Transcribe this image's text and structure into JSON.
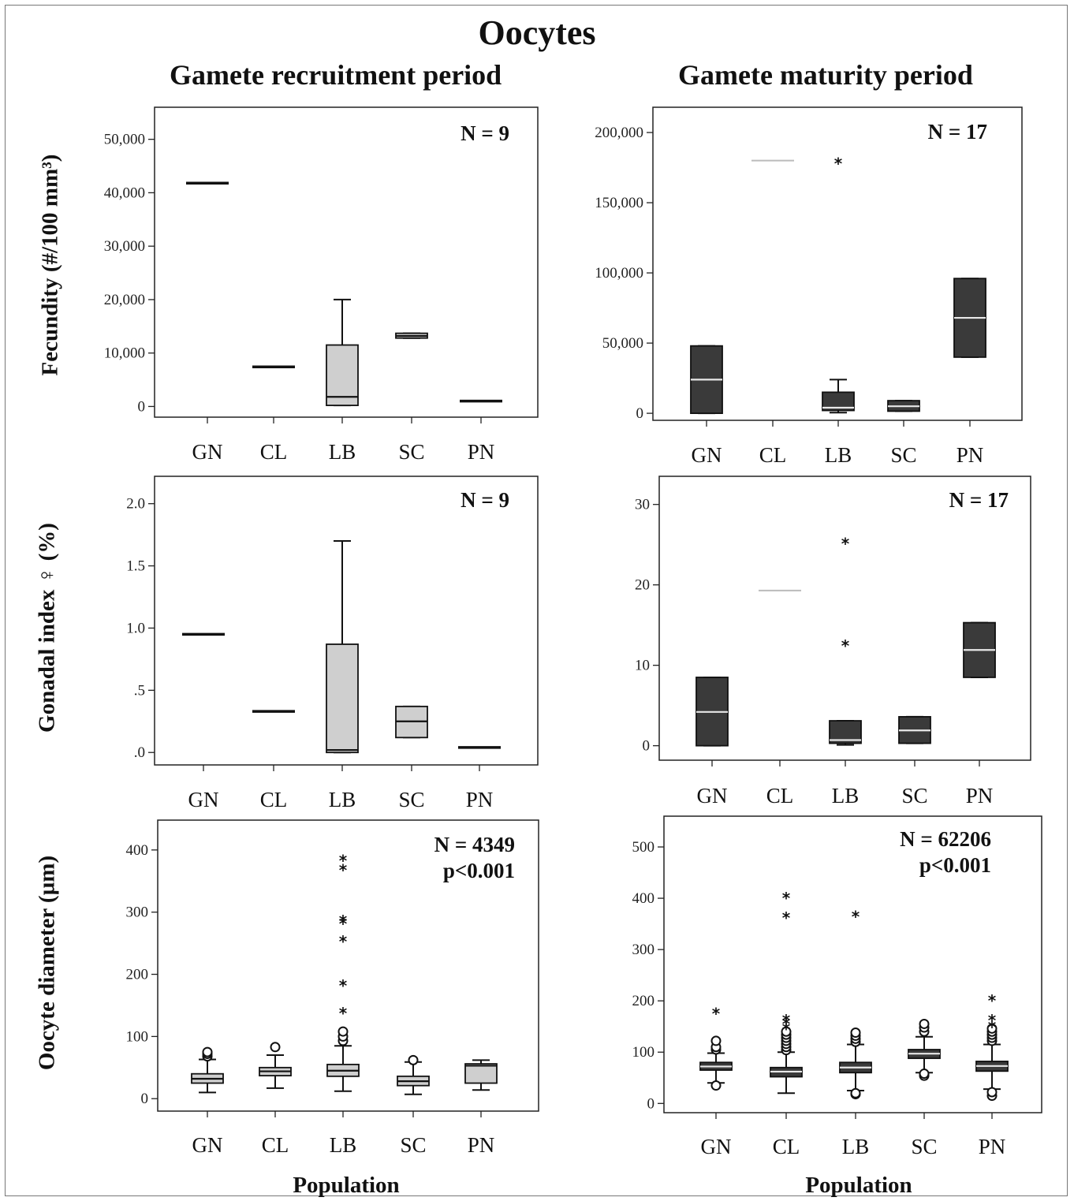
{
  "title": "Oocytes",
  "columns": {
    "left": "Gamete recruitment period",
    "right": "Gamete maturity period"
  },
  "y_labels": {
    "fecundity": "Fecundity (#/100 mm³)",
    "gonadal": "Gonadal index ♀ (%)",
    "oocyte": "Oocyte diameter (µm)"
  },
  "x_title": "Population",
  "colors": {
    "box_light": "#cfcfcf",
    "box_dark": "#3a3a3a",
    "median_on_dark": "#e8e8e8",
    "median_light_only": "#bbbbbb"
  },
  "chart_data": [
    {
      "type": "box",
      "title": "",
      "ylabel": "Fecundity (#/100 mm³)",
      "xlabel": "",
      "categories": [
        "GN",
        "CL",
        "LB",
        "SC",
        "PN"
      ],
      "ylim": [
        -2000,
        56000
      ],
      "yticks": [
        0,
        10000,
        20000,
        30000,
        40000,
        50000
      ],
      "ytick_labels": [
        "0",
        "10,000",
        "20,000",
        "30,000",
        "40,000",
        "50,000"
      ],
      "annotation": [
        "N = 9"
      ],
      "style": "light",
      "boxes": [
        {
          "median": 41800,
          "q1": 41800,
          "q3": 41800,
          "whisker_low": 41800,
          "whisker_high": 41800,
          "outliers": [],
          "extremes": []
        },
        {
          "median": 7400,
          "q1": 7400,
          "q3": 7400,
          "whisker_low": 7400,
          "whisker_high": 7400,
          "outliers": [],
          "extremes": []
        },
        {
          "median": 1800,
          "q1": 200,
          "q3": 11500,
          "whisker_low": 200,
          "whisker_high": 20000,
          "outliers": [],
          "extremes": []
        },
        {
          "median": 13200,
          "q1": 12800,
          "q3": 13700,
          "whisker_low": 12800,
          "whisker_high": 13700,
          "outliers": [],
          "extremes": []
        },
        {
          "median": 1000,
          "q1": 1000,
          "q3": 1000,
          "whisker_low": 1000,
          "whisker_high": 1000,
          "outliers": [],
          "extremes": []
        }
      ]
    },
    {
      "type": "box",
      "title": "",
      "ylabel": "",
      "xlabel": "",
      "categories": [
        "GN",
        "CL",
        "LB",
        "SC",
        "PN"
      ],
      "ylim": [
        -5000,
        218000
      ],
      "yticks": [
        0,
        50000,
        100000,
        150000,
        200000
      ],
      "ytick_labels": [
        "0",
        "50,000",
        "100,000",
        "150,000",
        "200,000"
      ],
      "annotation": [
        "N = 17"
      ],
      "style": "dark",
      "boxes": [
        {
          "median": 24000,
          "q1": 0,
          "q3": 48000,
          "whisker_low": 0,
          "whisker_high": 48000,
          "outliers": [],
          "extremes": []
        },
        {
          "median": 180000,
          "q1": 180000,
          "q3": 180000,
          "whisker_low": 180000,
          "whisker_high": 180000,
          "outliers": [],
          "extremes": [],
          "light_median": true
        },
        {
          "median": 4000,
          "q1": 2000,
          "q3": 15000,
          "whisker_low": 500,
          "whisker_high": 24000,
          "outliers": [],
          "extremes": [
            179000
          ]
        },
        {
          "median": 5000,
          "q1": 1500,
          "q3": 9000,
          "whisker_low": 1500,
          "whisker_high": 9000,
          "outliers": [],
          "extremes": []
        },
        {
          "median": 68000,
          "q1": 40000,
          "q3": 96000,
          "whisker_low": 40000,
          "whisker_high": 96000,
          "outliers": [],
          "extremes": []
        }
      ]
    },
    {
      "type": "box",
      "title": "",
      "ylabel": "Gonadal index ♀ (%)",
      "xlabel": "",
      "categories": [
        "GN",
        "CL",
        "LB",
        "SC",
        "PN"
      ],
      "ylim": [
        -0.1,
        2.22
      ],
      "yticks": [
        0,
        0.5,
        1.0,
        1.5,
        2.0
      ],
      "ytick_labels": [
        ".0",
        ".5",
        "1.0",
        "1.5",
        "2.0"
      ],
      "annotation": [
        "N = 9"
      ],
      "style": "light",
      "boxes": [
        {
          "median": 0.95,
          "q1": 0.95,
          "q3": 0.95,
          "whisker_low": 0.95,
          "whisker_high": 0.95,
          "outliers": [],
          "extremes": []
        },
        {
          "median": 0.33,
          "q1": 0.33,
          "q3": 0.33,
          "whisker_low": 0.33,
          "whisker_high": 0.33,
          "outliers": [],
          "extremes": []
        },
        {
          "median": 0.02,
          "q1": 0.0,
          "q3": 0.87,
          "whisker_low": 0.0,
          "whisker_high": 1.7,
          "outliers": [],
          "extremes": []
        },
        {
          "median": 0.25,
          "q1": 0.12,
          "q3": 0.37,
          "whisker_low": 0.12,
          "whisker_high": 0.37,
          "outliers": [],
          "extremes": []
        },
        {
          "median": 0.04,
          "q1": 0.04,
          "q3": 0.04,
          "whisker_low": 0.04,
          "whisker_high": 0.04,
          "outliers": [],
          "extremes": []
        }
      ]
    },
    {
      "type": "box",
      "title": "",
      "ylabel": "",
      "xlabel": "",
      "categories": [
        "GN",
        "CL",
        "LB",
        "SC",
        "PN"
      ],
      "ylim": [
        -1.8,
        33.5
      ],
      "yticks": [
        0,
        10,
        20,
        30
      ],
      "ytick_labels": [
        "0",
        "10",
        "20",
        "30"
      ],
      "annotation": [
        "N = 17"
      ],
      "style": "dark",
      "boxes": [
        {
          "median": 4.2,
          "q1": 0,
          "q3": 8.5,
          "whisker_low": 0,
          "whisker_high": 8.5,
          "outliers": [],
          "extremes": []
        },
        {
          "median": 19.3,
          "q1": 19.3,
          "q3": 19.3,
          "whisker_low": 19.3,
          "whisker_high": 19.3,
          "outliers": [],
          "extremes": [],
          "light_median": true
        },
        {
          "median": 0.7,
          "q1": 0.3,
          "q3": 3.1,
          "whisker_low": 0.1,
          "whisker_high": 3.1,
          "outliers": [],
          "extremes": [
            12.6,
            25.3
          ]
        },
        {
          "median": 1.9,
          "q1": 0.3,
          "q3": 3.6,
          "whisker_low": 0.3,
          "whisker_high": 3.6,
          "outliers": [],
          "extremes": []
        },
        {
          "median": 11.9,
          "q1": 8.5,
          "q3": 15.3,
          "whisker_low": 8.5,
          "whisker_high": 15.3,
          "outliers": [],
          "extremes": []
        }
      ]
    },
    {
      "type": "box",
      "title": "",
      "ylabel": "Oocyte diameter (µm)",
      "xlabel": "Population",
      "categories": [
        "GN",
        "CL",
        "LB",
        "SC",
        "PN"
      ],
      "ylim": [
        -20,
        448
      ],
      "yticks": [
        0,
        100,
        200,
        300,
        400
      ],
      "ytick_labels": [
        "0",
        "100",
        "200",
        "300",
        "400"
      ],
      "annotation": [
        "N = 4349",
        "p<0.001"
      ],
      "style": "light",
      "boxes": [
        {
          "median": 32,
          "q1": 25,
          "q3": 40,
          "whisker_low": 10,
          "whisker_high": 63,
          "outliers": [
            68,
            72,
            75
          ],
          "extremes": []
        },
        {
          "median": 44,
          "q1": 37,
          "q3": 50,
          "whisker_low": 17,
          "whisker_high": 70,
          "outliers": [
            83
          ],
          "extremes": []
        },
        {
          "median": 45,
          "q1": 36,
          "q3": 55,
          "whisker_low": 12,
          "whisker_high": 85,
          "outliers": [
            93,
            100,
            108
          ],
          "extremes": [
            140,
            184,
            255,
            284,
            288,
            370,
            385
          ]
        },
        {
          "median": 28,
          "q1": 21,
          "q3": 36,
          "whisker_low": 7,
          "whisker_high": 59,
          "outliers": [
            62
          ],
          "extremes": []
        },
        {
          "median": 53,
          "q1": 25,
          "q3": 56,
          "whisker_low": 14,
          "whisker_high": 62,
          "outliers": [],
          "extremes": []
        }
      ]
    },
    {
      "type": "box",
      "title": "",
      "ylabel": "",
      "xlabel": "Population",
      "categories": [
        "GN",
        "CL",
        "LB",
        "SC",
        "PN"
      ],
      "ylim": [
        -18,
        560
      ],
      "yticks": [
        0,
        100,
        200,
        300,
        400,
        500
      ],
      "ytick_labels": [
        "0",
        "100",
        "200",
        "300",
        "400",
        "500"
      ],
      "annotation": [
        "N = 62206",
        "p<0.001"
      ],
      "style": "dark",
      "boxes": [
        {
          "median": 72,
          "q1": 65,
          "q3": 80,
          "whisker_low": 40,
          "whisker_high": 98,
          "outliers": [
            35,
            105,
            110,
            122
          ],
          "extremes": [
            178
          ]
        },
        {
          "median": 62,
          "q1": 52,
          "q3": 70,
          "whisker_low": 20,
          "whisker_high": 100,
          "outliers": [
            104,
            110,
            116,
            122,
            128,
            134,
            140
          ],
          "extremes": [
            148,
            158,
            165,
            365,
            403
          ]
        },
        {
          "median": 70,
          "q1": 60,
          "q3": 80,
          "whisker_low": 25,
          "whisker_high": 115,
          "outliers": [
            18,
            20,
            120,
            126,
            132,
            138
          ],
          "extremes": [
            367
          ]
        },
        {
          "median": 97,
          "q1": 88,
          "q3": 105,
          "whisker_low": 60,
          "whisker_high": 130,
          "outliers": [
            54,
            58,
            140,
            148,
            155
          ],
          "extremes": []
        },
        {
          "median": 73,
          "q1": 63,
          "q3": 82,
          "whisker_low": 28,
          "whisker_high": 115,
          "outliers": [
            15,
            22,
            122,
            128,
            134,
            140,
            146
          ],
          "extremes": [
            152,
            165,
            203
          ]
        }
      ]
    }
  ]
}
